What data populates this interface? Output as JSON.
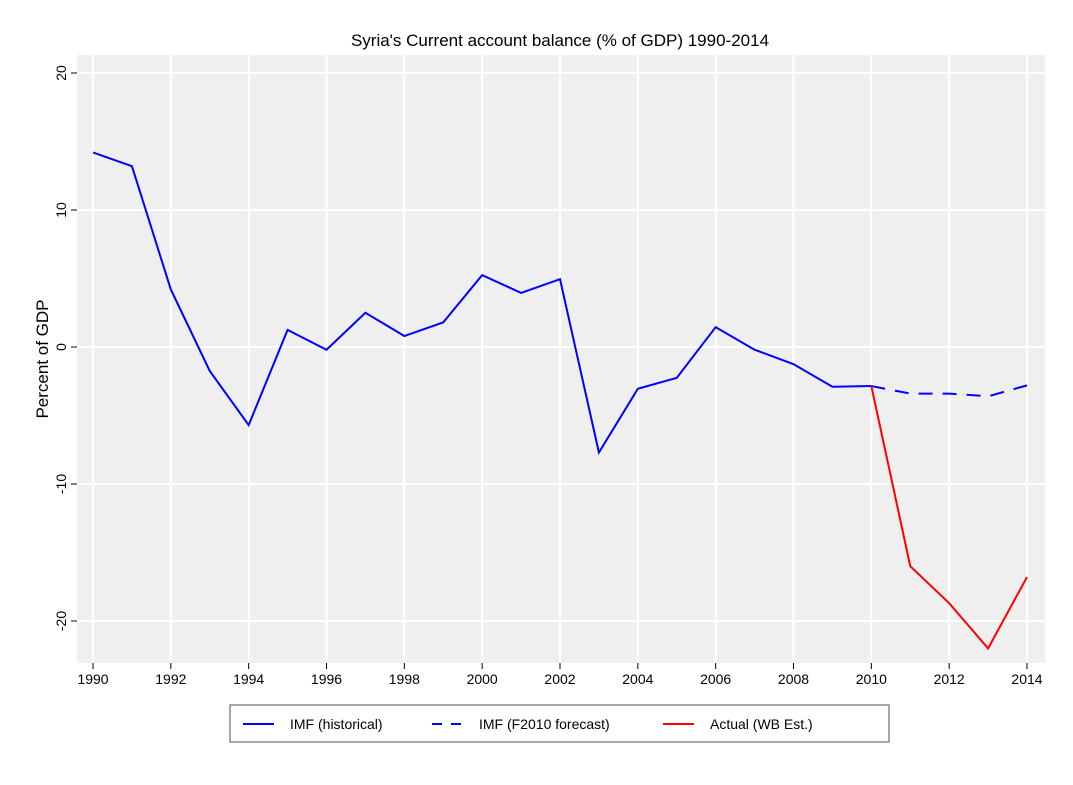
{
  "chart_data": {
    "type": "line",
    "title": "Syria's Current account balance (% of GDP) 1990-2014",
    "xlabel": "",
    "ylabel": "Percent of GDP",
    "xlim": [
      1990,
      2014
    ],
    "ylim": [
      -23,
      22
    ],
    "grid": true,
    "legend_placement": "bottom",
    "x_ticks": [
      1990,
      1992,
      1994,
      1996,
      1998,
      2000,
      2002,
      2004,
      2006,
      2008,
      2010,
      2012,
      2014
    ],
    "y_ticks": [
      20,
      10,
      0,
      -10,
      -20
    ],
    "series": [
      {
        "name": "IMF (historical)",
        "color": "#0000ff",
        "dash": "solid",
        "x": [
          1990,
          1991,
          1992,
          1993,
          1994,
          1995,
          1996,
          1997,
          1998,
          1999,
          2000,
          2001,
          2002,
          2003,
          2004,
          2005,
          2006,
          2007,
          2008,
          2009,
          2010
        ],
        "values": [
          14.2,
          13.2,
          4.2,
          -1.75,
          -5.7,
          1.25,
          -0.2,
          2.5,
          0.8,
          1.8,
          5.25,
          3.95,
          4.95,
          -7.7,
          -3.05,
          -2.25,
          1.45,
          -0.2,
          -1.25,
          -2.9,
          -2.85
        ]
      },
      {
        "name": "IMF (F2010 forecast)",
        "color": "#0000ff",
        "dash": "dashed",
        "x": [
          2010,
          2011,
          2012,
          2013,
          2014
        ],
        "values": [
          -2.85,
          -3.4,
          -3.4,
          -3.6,
          -2.8
        ]
      },
      {
        "name": "Actual (WB Est.)",
        "color": "#ff0000",
        "dash": "solid",
        "x": [
          2010,
          2011,
          2012,
          2013,
          2014
        ],
        "values": [
          -2.85,
          -16.0,
          -18.7,
          -22.0,
          -16.8
        ]
      }
    ],
    "colors": {
      "plot_background": "#efefef",
      "grid": "#ffffff"
    }
  }
}
